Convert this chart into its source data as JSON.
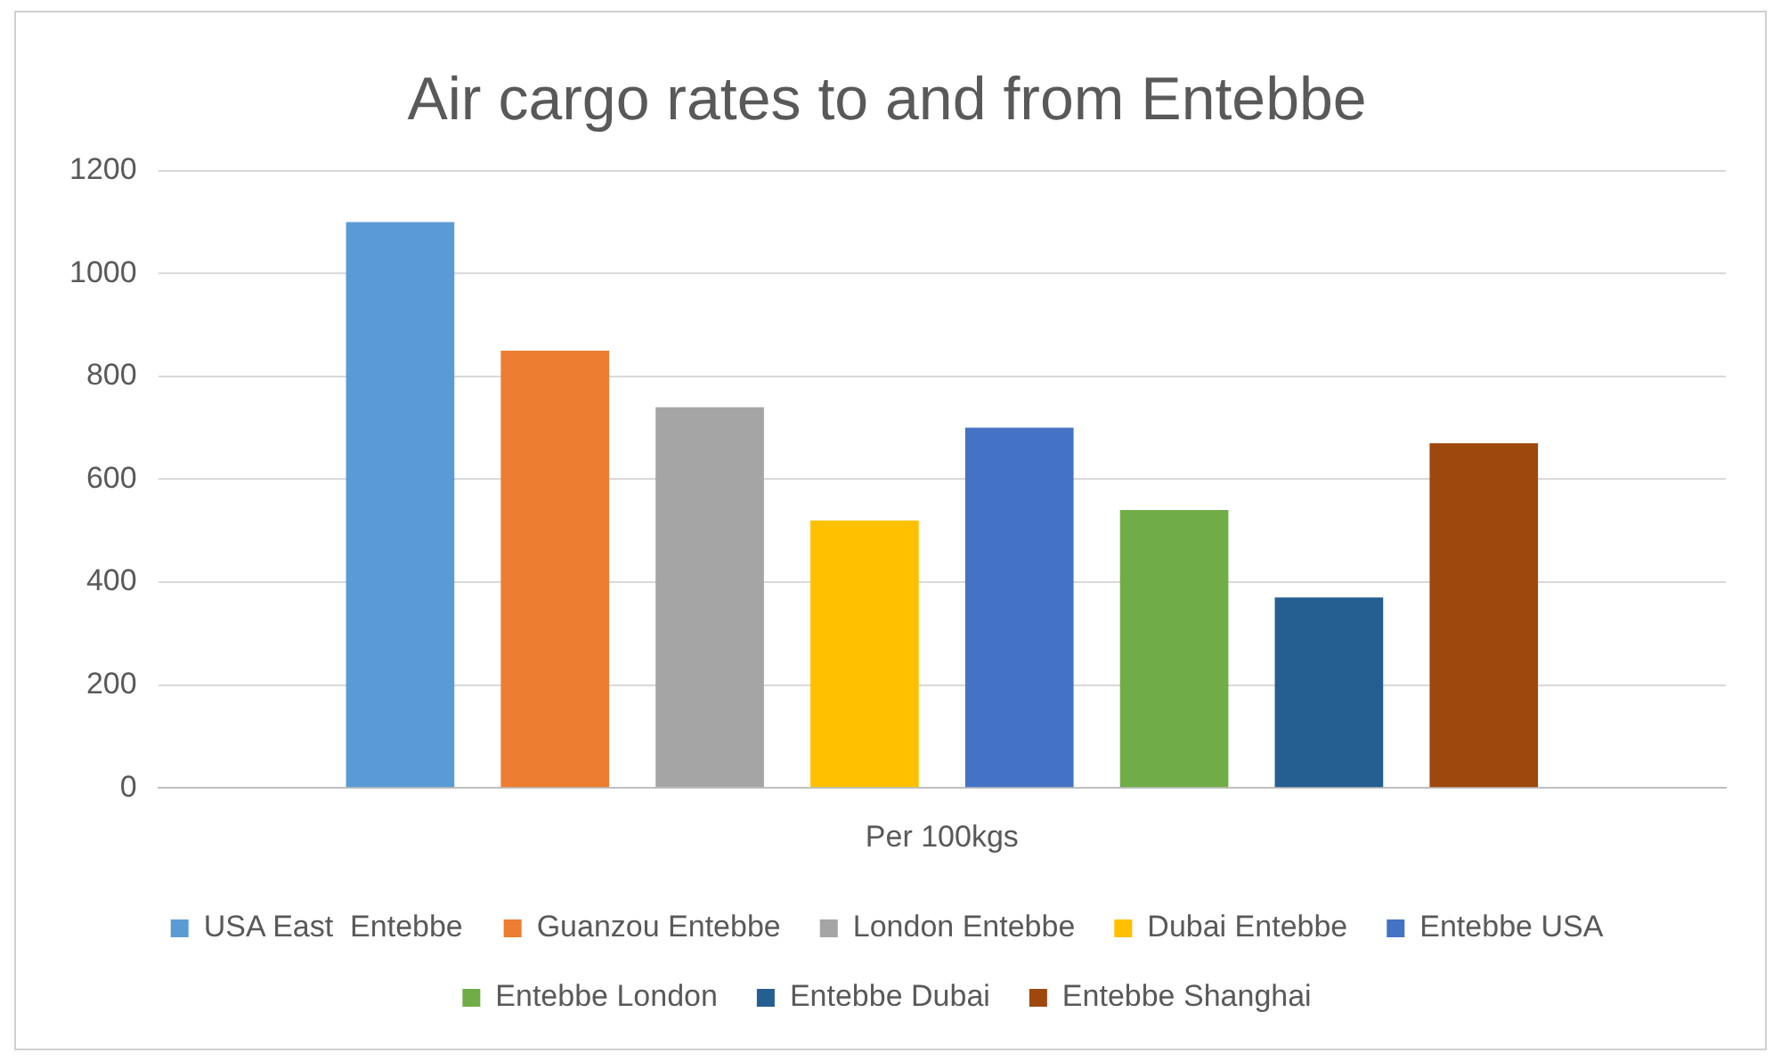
{
  "chart_data": {
    "type": "bar",
    "title": "Air cargo rates to and from Entebbe",
    "categories": [
      "Per 100kgs"
    ],
    "series": [
      {
        "name": "USA East  Entebbe",
        "color": "#5b9bd5",
        "values": [
          1100
        ]
      },
      {
        "name": "Guanzou Entebbe",
        "color": "#ed7d31",
        "values": [
          850
        ]
      },
      {
        "name": "London Entebbe",
        "color": "#a5a5a5",
        "values": [
          740
        ]
      },
      {
        "name": "Dubai Entebbe",
        "color": "#ffc000",
        "values": [
          520
        ]
      },
      {
        "name": "Entebbe USA",
        "color": "#4472c4",
        "values": [
          700
        ]
      },
      {
        "name": "Entebbe London",
        "color": "#70ad47",
        "values": [
          540
        ]
      },
      {
        "name": "Entebbe Dubai",
        "color": "#255e91",
        "values": [
          370
        ]
      },
      {
        "name": "Entebbe Shanghai",
        "color": "#9e480e",
        "values": [
          670
        ]
      }
    ],
    "ylim": [
      0,
      1200
    ],
    "yticks": [
      0,
      200,
      400,
      600,
      800,
      1000,
      1200
    ],
    "grid": "y",
    "legend": "bottom"
  }
}
